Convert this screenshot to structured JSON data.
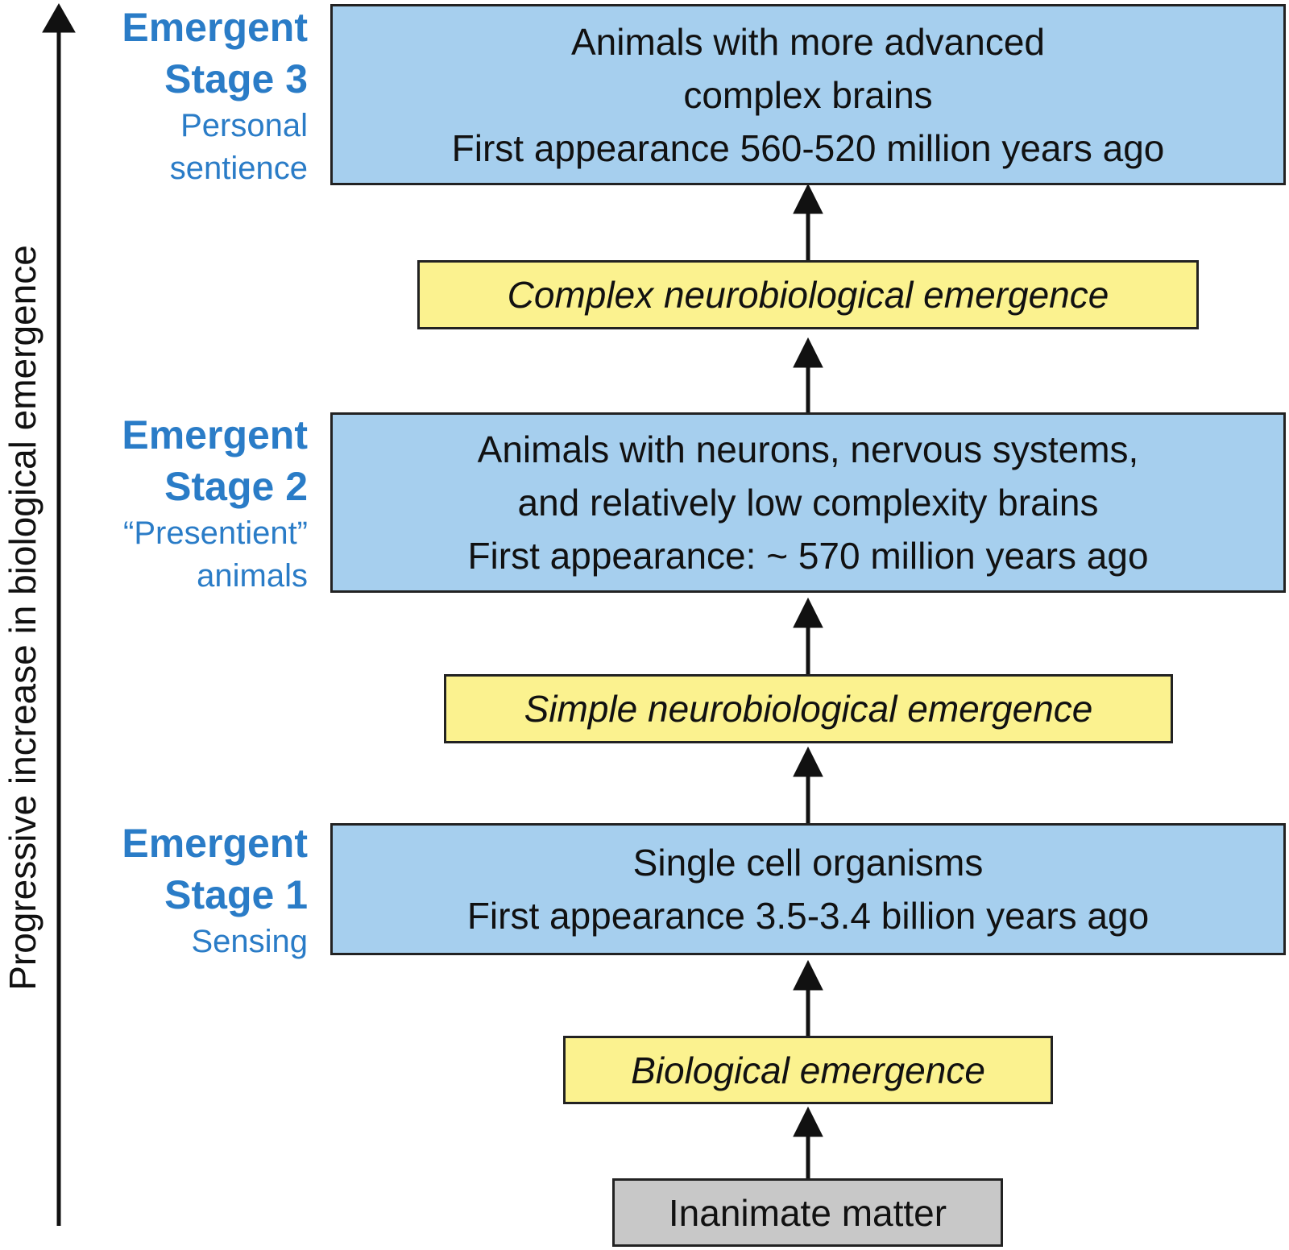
{
  "axis_label": "Progressive increase in biological emergence",
  "stages": [
    {
      "title1": "Emergent",
      "title2": "Stage 3",
      "sub1": "Personal",
      "sub2": "sentience",
      "box_lines": [
        "Animals with more advanced",
        "complex brains",
        "First appearance 560-520 million years ago"
      ]
    },
    {
      "title1": "Emergent",
      "title2": "Stage 2",
      "sub1": "“Presentient”",
      "sub2": "animals",
      "box_lines": [
        "Animals with neurons, nervous systems,",
        "and relatively low complexity brains",
        "First appearance: ~ 570 million years ago"
      ]
    },
    {
      "title1": "Emergent",
      "title2": "Stage 1",
      "sub1": "Sensing",
      "box_lines": [
        "Single cell organisms",
        "First appearance 3.5-3.4 billion years ago"
      ]
    }
  ],
  "transitions": [
    "Complex neurobiological emergence",
    "Simple neurobiological emergence",
    "Biological emergence"
  ],
  "base": "Inanimate matter",
  "colors": {
    "stage_box": "#a6cfee",
    "transition_box": "#fbf28f",
    "base_box": "#c8c8c8",
    "label": "#2a7cc7"
  }
}
